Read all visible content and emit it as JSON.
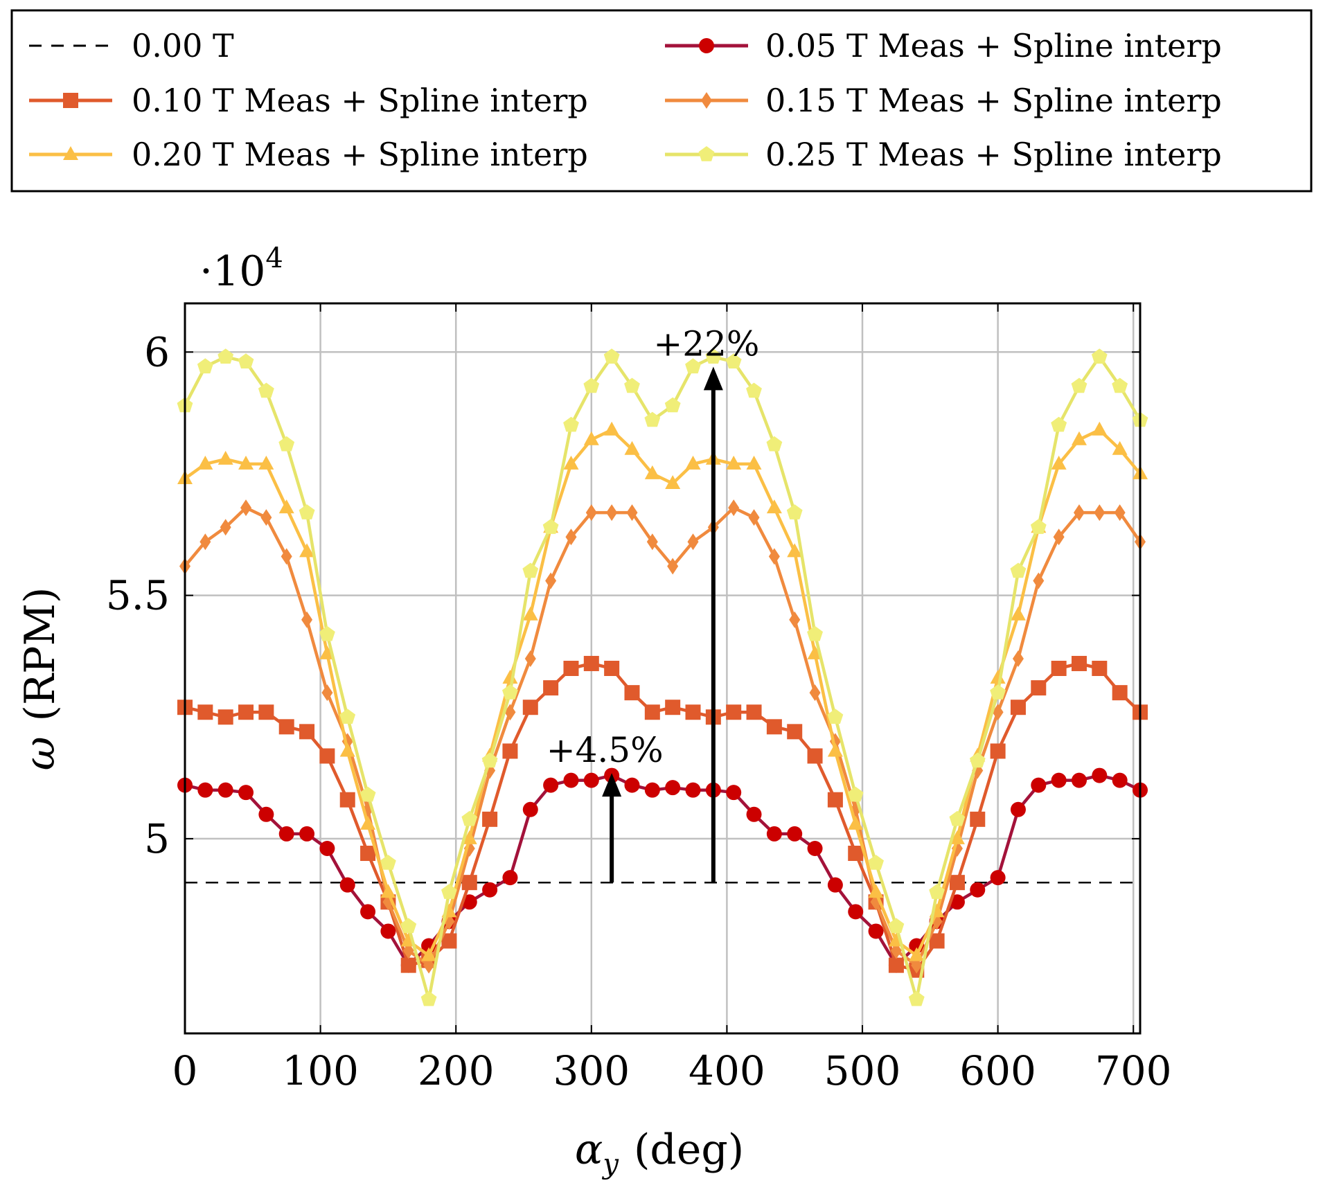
{
  "chart_data": {
    "type": "line",
    "xlabel_symbol": "α",
    "xlabel_sub": "y",
    "xlabel_unit": "(deg)",
    "ylabel_symbol": "ω",
    "ylabel_unit": "(RPM)",
    "y_multiplier_base": "·10",
    "y_multiplier_exp": "4",
    "xlim": [
      0,
      705
    ],
    "ylim": [
      46000,
      61000
    ],
    "x_ticks": [
      0,
      100,
      200,
      300,
      400,
      500,
      600,
      700
    ],
    "x_tick_labels": [
      "0",
      "100",
      "200",
      "300",
      "400",
      "500",
      "600",
      "700"
    ],
    "y_ticks": [
      50000,
      55000,
      60000
    ],
    "y_tick_labels": [
      "5",
      "5.5",
      "6"
    ],
    "grid": true,
    "legend_position": "top",
    "x": [
      0,
      15,
      30,
      45,
      60,
      75,
      90,
      105,
      120,
      135,
      150,
      165,
      180,
      195,
      210,
      225,
      240,
      255,
      270,
      285,
      300,
      315,
      330,
      345,
      360,
      375,
      390,
      405,
      420,
      435,
      450,
      465,
      480,
      495,
      510,
      525,
      540,
      555,
      570,
      585,
      600,
      615,
      630,
      645,
      660,
      675,
      690,
      705
    ],
    "series": [
      {
        "name": "0.00 T",
        "style": "dashed",
        "color": "#000000",
        "marker": "none",
        "x": [
          0,
          705
        ],
        "values": [
          49100,
          49100
        ]
      },
      {
        "name": "0.05 T Meas + Spline interp",
        "style": "solid",
        "color": "#a3123a",
        "line_color": "#a3123a",
        "marker": "circle",
        "marker_color": "#cc0000",
        "values": [
          51100,
          51000,
          51000,
          50950,
          50500,
          50100,
          50100,
          49800,
          49050,
          48500,
          48100,
          47400,
          47800,
          48300,
          48700,
          48950,
          49200,
          50600,
          51100,
          51200,
          51200,
          51300,
          51100,
          51000,
          51050,
          51000,
          51000,
          50950,
          50500,
          50100,
          50100,
          49800,
          49050,
          48500,
          48100,
          47400,
          47800,
          48300,
          48700,
          48950,
          49200,
          50600,
          51100,
          51200,
          51200,
          51300,
          51200,
          51000
        ]
      },
      {
        "name": "0.10 T Meas + Spline interp",
        "style": "solid",
        "color": "#e05a2c",
        "line_color": "#e05a2c",
        "marker": "square",
        "marker_color": "#e05a2c",
        "values": [
          52700,
          52600,
          52500,
          52600,
          52600,
          52300,
          52200,
          51700,
          50800,
          49700,
          48700,
          47400,
          47500,
          47900,
          49100,
          50400,
          51800,
          52700,
          53100,
          53500,
          53600,
          53500,
          53000,
          52600,
          52700,
          52600,
          52500,
          52600,
          52600,
          52300,
          52200,
          51700,
          50800,
          49700,
          48700,
          47400,
          47300,
          47900,
          49100,
          50400,
          51800,
          52700,
          53100,
          53500,
          53600,
          53500,
          53000,
          52600
        ]
      },
      {
        "name": "0.15 T Meas + Spline interp",
        "style": "solid",
        "color": "#f08a3e",
        "line_color": "#f08a3e",
        "marker": "diamond",
        "marker_color": "#f08a3e",
        "values": [
          55600,
          56100,
          56400,
          56800,
          56600,
          55800,
          54500,
          53000,
          52000,
          50600,
          48700,
          47700,
          47400,
          48300,
          49800,
          51400,
          52600,
          53700,
          55300,
          56200,
          56700,
          56700,
          56700,
          56100,
          55600,
          56100,
          56400,
          56800,
          56600,
          55800,
          54500,
          53000,
          52000,
          50600,
          48700,
          47700,
          47400,
          48300,
          49800,
          51400,
          52600,
          53700,
          55300,
          56200,
          56700,
          56700,
          56700,
          56100
        ]
      },
      {
        "name": "0.20 T Meas + Spline interp",
        "style": "solid",
        "color": "#fbbf45",
        "line_color": "#fbbf45",
        "marker": "triangle",
        "marker_color": "#fbbf45",
        "values": [
          57400,
          57700,
          57800,
          57700,
          57700,
          56800,
          55900,
          53800,
          51800,
          50300,
          48900,
          47900,
          47600,
          48500,
          50000,
          51700,
          53300,
          54600,
          56400,
          57700,
          58200,
          58400,
          58000,
          57500,
          57300,
          57700,
          57800,
          57700,
          57700,
          56800,
          55900,
          53800,
          51800,
          50300,
          48900,
          47900,
          47600,
          48500,
          50000,
          51700,
          53300,
          54600,
          56400,
          57700,
          58200,
          58400,
          58000,
          57500
        ]
      },
      {
        "name": "0.25 T Meas + Spline interp",
        "style": "solid",
        "color": "#e6e46a",
        "line_color": "#e6e46a",
        "marker": "pentagon",
        "marker_color": "#f0ee78",
        "values": [
          58900,
          59700,
          59900,
          59800,
          59200,
          58100,
          56700,
          54200,
          52500,
          50900,
          49500,
          48200,
          46700,
          48900,
          50400,
          51600,
          53000,
          55500,
          56400,
          58500,
          59300,
          59900,
          59300,
          58600,
          58900,
          59700,
          59900,
          59800,
          59200,
          58100,
          56700,
          54200,
          52500,
          50900,
          49500,
          48200,
          46700,
          48900,
          50400,
          51600,
          53000,
          55500,
          56400,
          58500,
          59300,
          59900,
          59300,
          58600
        ]
      }
    ],
    "annotations": [
      {
        "text": "+4.5%",
        "x": 315,
        "y_from": 49100,
        "y_to": 51350
      },
      {
        "text": "+22%",
        "x": 390,
        "y_from": 49100,
        "y_to": 59700
      }
    ]
  }
}
